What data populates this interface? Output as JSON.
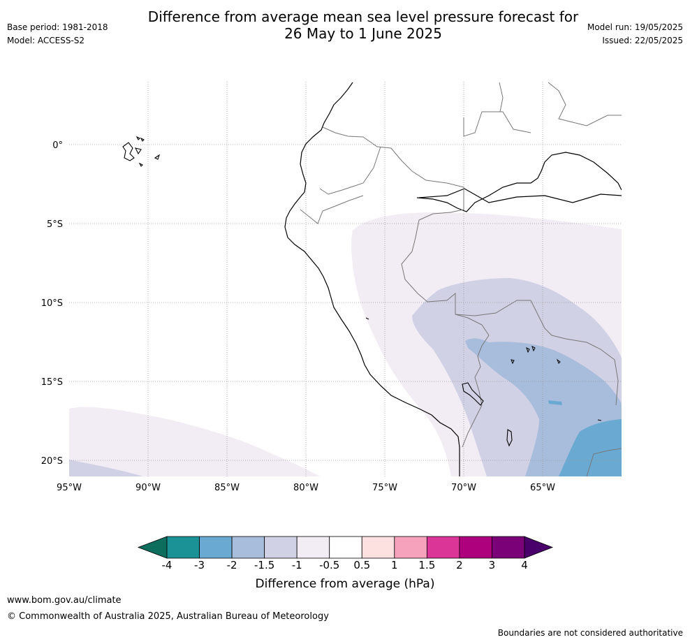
{
  "header": {
    "title_line1": "Difference from average mean sea level pressure forecast for",
    "title_line2": "26 May to 1 June 2025",
    "base_period": "Base period: 1981-2018",
    "model": "Model: ACCESS-S2",
    "model_run": "Model run: 19/05/2025",
    "issued": "Issued: 22/05/2025"
  },
  "map": {
    "lon_labels": [
      "95°W",
      "90°W",
      "85°W",
      "80°W",
      "75°W",
      "70°W",
      "65°W"
    ],
    "lat_labels": [
      "0°",
      "5°S",
      "10°S",
      "15°S",
      "20°S"
    ],
    "anomaly_regions": [
      {
        "range": "-1 to -0.5 hPa",
        "color": "#f2ecf4",
        "area": "eastern Peru, Bolivia, western Brazil; southwest Pacific corner"
      },
      {
        "range": "-1.5 to -1 hPa",
        "color": "#d1d1e6",
        "area": "southern Peru, Bolivia, northern Chile"
      },
      {
        "range": "-2 to -1.5 hPa",
        "color": "#a8bcdb",
        "area": "Bolivian altiplano and lowlands"
      },
      {
        "range": "-3 to -2 hPa",
        "color": "#6aa9d1",
        "area": "southeast Bolivia"
      }
    ]
  },
  "colorbar": {
    "label": "Difference from average (hPa)",
    "ticks": [
      "-4",
      "-3",
      "-2",
      "-1.5",
      "-1",
      "-0.5",
      "0.5",
      "1",
      "1.5",
      "2",
      "3",
      "4"
    ],
    "colors": [
      "#0e6e5e",
      "#1b9396",
      "#6aa9d1",
      "#a8bcdb",
      "#d1d1e6",
      "#f2ecf4",
      "#ffffff",
      "#fde0e0",
      "#f6a2bd",
      "#db3597",
      "#ae017e",
      "#7a0177",
      "#49006a"
    ]
  },
  "footer": {
    "url": "www.bom.gov.au/climate",
    "copyright": "© Commonwealth of Australia 2025, Australian Bureau of Meteorology",
    "note": "Boundaries are not considered authoritative"
  }
}
